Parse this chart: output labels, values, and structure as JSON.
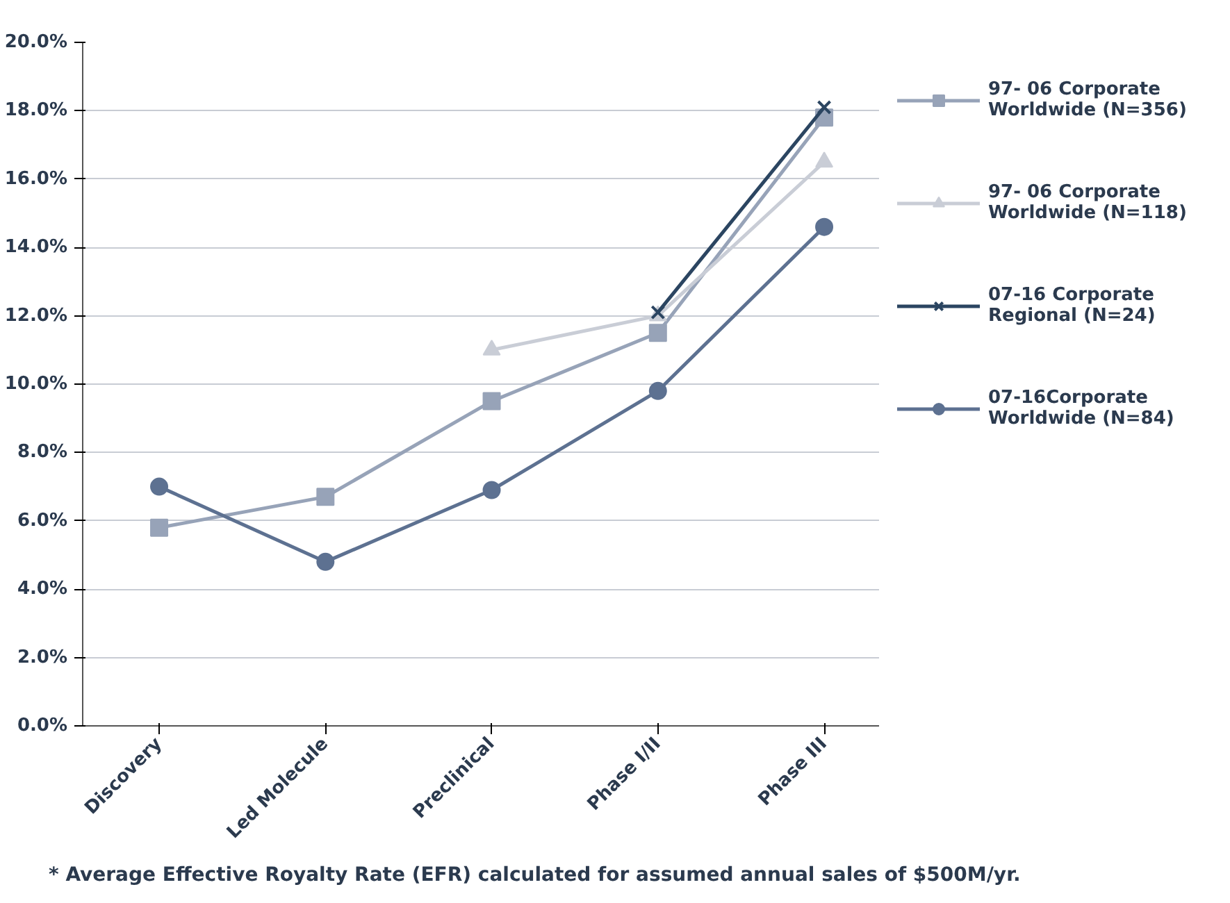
{
  "chart_data": {
    "type": "line",
    "categories": [
      "Discovery",
      "Led Molecule",
      "Preclinical",
      "Phase I/II",
      "Phase III"
    ],
    "series": [
      {
        "name": "97- 06 Corporate\nWorldwide (N=356)",
        "color": "#97a3b8",
        "marker": "square",
        "values": [
          5.8,
          6.7,
          9.5,
          11.5,
          17.8
        ]
      },
      {
        "name": "97- 06 Corporate\nWorldwide (N=118)",
        "color": "#c9cdd6",
        "marker": "triangle",
        "values": [
          null,
          null,
          11.0,
          12.0,
          16.5
        ]
      },
      {
        "name": "07-16 Corporate\nRegional (N=24)",
        "color": "#2b4561",
        "marker": "cross",
        "values": [
          null,
          null,
          null,
          12.1,
          18.1
        ]
      },
      {
        "name": "07-16Corporate\nWorldwide (N=84)",
        "color": "#5d7191",
        "marker": "circle",
        "values": [
          7.0,
          4.8,
          6.9,
          9.8,
          14.6
        ]
      }
    ],
    "ylim": [
      0,
      20
    ],
    "yticks": [
      {
        "value": 0,
        "label": "0.0%"
      },
      {
        "value": 2,
        "label": "2.0%"
      },
      {
        "value": 4,
        "label": "4.0%"
      },
      {
        "value": 6,
        "label": "6.0%"
      },
      {
        "value": 8,
        "label": "8.0%"
      },
      {
        "value": 10,
        "label": "10.0%"
      },
      {
        "value": 12,
        "label": "12.0%"
      },
      {
        "value": 14,
        "label": "14.0%"
      },
      {
        "value": 16,
        "label": "16.0%"
      },
      {
        "value": 18,
        "label": "18.0%"
      },
      {
        "value": 20,
        "label": "20.0%"
      }
    ],
    "grid": "y",
    "legend": "right",
    "line_style": "solid",
    "annotations": [
      "* Average Effective Royalty Rate (EFR) calculated for assumed annual sales of $500M/yr."
    ]
  }
}
